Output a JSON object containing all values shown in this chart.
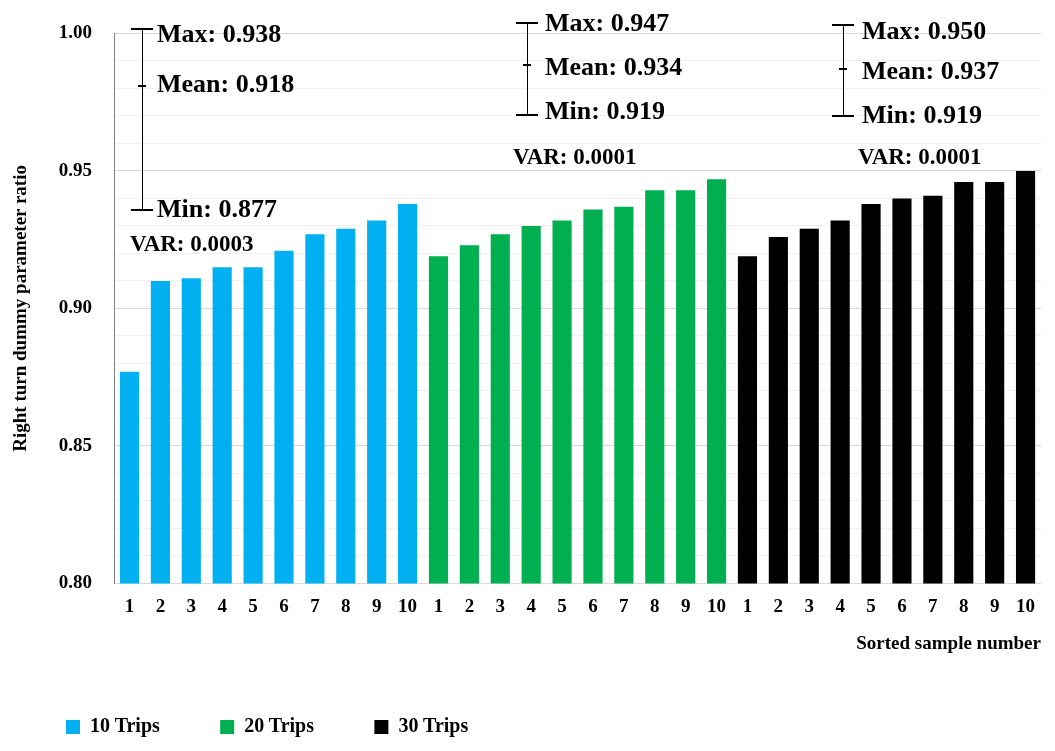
{
  "chart_data": {
    "type": "bar",
    "ylabel": "Right turn dummy parameter ratio",
    "xlabel": "Sorted sample number",
    "categories": [
      "1",
      "2",
      "3",
      "4",
      "5",
      "6",
      "7",
      "8",
      "9",
      "10",
      "1",
      "2",
      "3",
      "4",
      "5",
      "6",
      "7",
      "8",
      "9",
      "10",
      "1",
      "2",
      "3",
      "4",
      "5",
      "6",
      "7",
      "8",
      "9",
      "10"
    ],
    "series": [
      {
        "name": "10 Trips",
        "color": "#00b0f0",
        "values": [
          0.877,
          0.91,
          0.911,
          0.915,
          0.915,
          0.921,
          0.927,
          0.929,
          0.932,
          0.938,
          null,
          null,
          null,
          null,
          null,
          null,
          null,
          null,
          null,
          null,
          null,
          null,
          null,
          null,
          null,
          null,
          null,
          null,
          null,
          null
        ]
      },
      {
        "name": "20 Trips",
        "color": "#00b050",
        "values": [
          null,
          null,
          null,
          null,
          null,
          null,
          null,
          null,
          null,
          null,
          0.919,
          0.923,
          0.927,
          0.93,
          0.932,
          0.936,
          0.937,
          0.943,
          0.943,
          0.947,
          null,
          null,
          null,
          null,
          null,
          null,
          null,
          null,
          null,
          null
        ]
      },
      {
        "name": "30 Trips",
        "color": "#000000",
        "values": [
          null,
          null,
          null,
          null,
          null,
          null,
          null,
          null,
          null,
          null,
          null,
          null,
          null,
          null,
          null,
          null,
          null,
          null,
          null,
          null,
          0.919,
          0.926,
          0.929,
          0.932,
          0.938,
          0.94,
          0.941,
          0.946,
          0.946,
          0.95
        ]
      }
    ],
    "ylim": [
      0.8,
      1.0
    ],
    "yticks": [
      {
        "value": 0.8,
        "label": "0.80"
      },
      {
        "value": 0.81,
        "label": null
      },
      {
        "value": 0.82,
        "label": null
      },
      {
        "value": 0.83,
        "label": null
      },
      {
        "value": 0.84,
        "label": null
      },
      {
        "value": 0.85,
        "label": "0.85"
      },
      {
        "value": 0.86,
        "label": null
      },
      {
        "value": 0.87,
        "label": null
      },
      {
        "value": 0.88,
        "label": null
      },
      {
        "value": 0.89,
        "label": null
      },
      {
        "value": 0.9,
        "label": "0.90"
      },
      {
        "value": 0.91,
        "label": null
      },
      {
        "value": 0.92,
        "label": null
      },
      {
        "value": 0.93,
        "label": null
      },
      {
        "value": 0.94,
        "label": null
      },
      {
        "value": 0.95,
        "label": "0.95"
      },
      {
        "value": 0.96,
        "label": null
      },
      {
        "value": 0.97,
        "label": null
      },
      {
        "value": 0.98,
        "label": null
      },
      {
        "value": 0.99,
        "label": null
      },
      {
        "value": 1.0,
        "label": "1.00"
      }
    ],
    "grid": "y",
    "legend": "bottom left",
    "annotations": [
      "Max: 0.938",
      "Mean: 0.918",
      "Min: 0.877",
      "VAR: 0.0003",
      "Max: 0.947",
      "Mean: 0.934",
      "Min: 0.919",
      "VAR: 0.0001",
      "Max: 0.950",
      "Mean: 0.937",
      "Min: 0.919",
      "VAR: 0.0001"
    ]
  }
}
